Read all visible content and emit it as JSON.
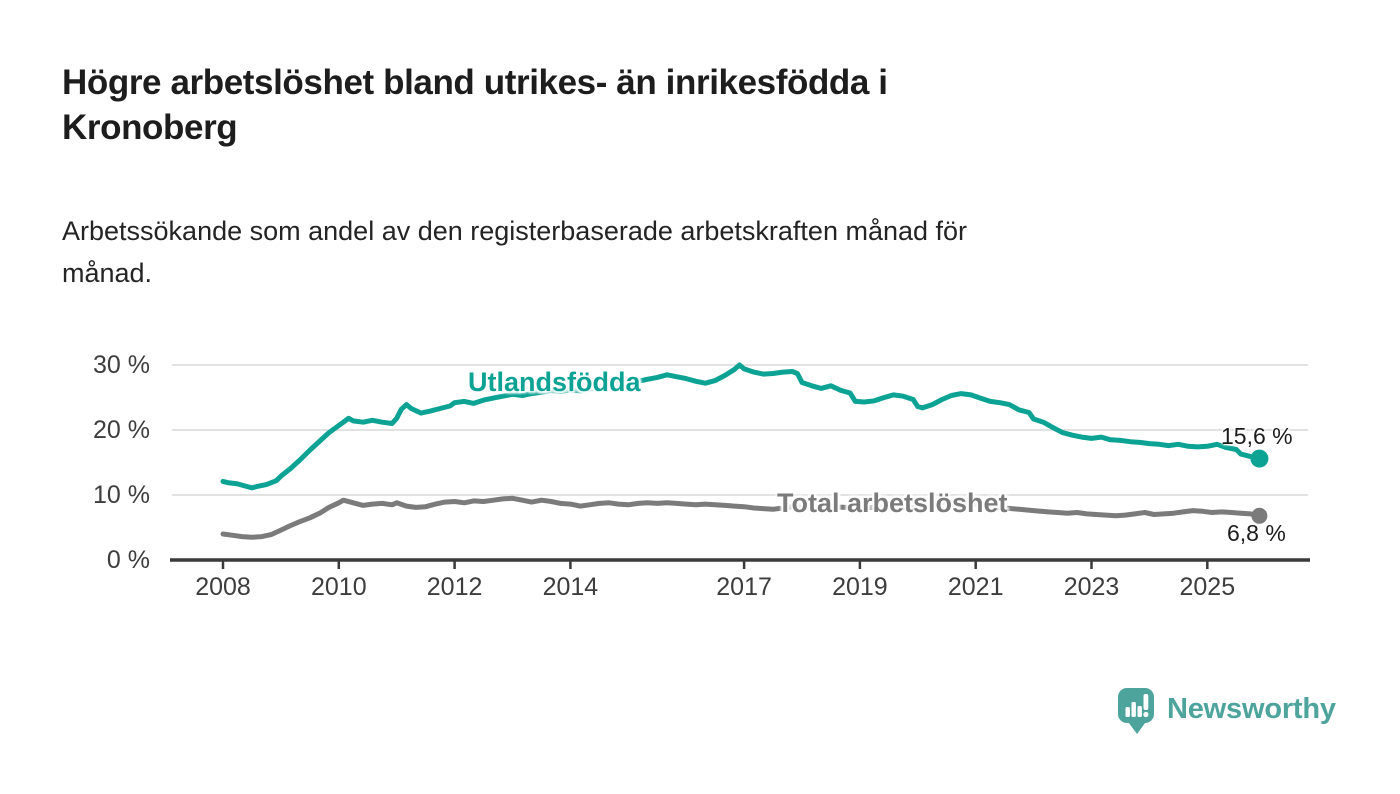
{
  "title": {
    "line1": "Högre arbetslöshet bland utrikes- än inrikesfödda i",
    "line2": "Kronoberg"
  },
  "subtitle": {
    "line1": "Arbetssökande som andel av den registerbaserade arbetskraften månad för",
    "line2": "månad."
  },
  "branding": {
    "name": "Newsworthy",
    "icon": "newsworthy-speech-bubble-bar-chart-icon",
    "color": "#4da49c"
  },
  "colors": {
    "series_foreign_born": "#0ca394",
    "series_total": "#7b7b7b",
    "gridline": "#d9d9d9",
    "axis": "#3a3a3a",
    "text": "#1d1d1d"
  },
  "chart_data": {
    "type": "line",
    "title": "Högre arbetslöshet bland utrikes- än inrikesfödda i Kronoberg",
    "subtitle": "Arbetssökande som andel av den registerbaserade arbetskraften månad för månad.",
    "xlabel": "",
    "ylabel": "",
    "legend_position": "inline-labels",
    "grid": true,
    "x_axis": {
      "ticks": [
        2008,
        2010,
        2012,
        2014,
        2017,
        2019,
        2021,
        2023,
        2025
      ],
      "labels": [
        "2008",
        "2010",
        "2012",
        "2014",
        "2017",
        "2019",
        "2021",
        "2023",
        "2025"
      ],
      "range": [
        2007.1,
        2026.8
      ]
    },
    "y_axis": {
      "ticks": [
        0,
        10,
        20,
        30
      ],
      "labels": [
        "0 %",
        "10 %",
        "20 %",
        "30 %"
      ],
      "range": [
        0,
        33
      ]
    },
    "series": [
      {
        "name": "Utlandsfödda",
        "color": "#0ca394",
        "end_value": 15.6,
        "end_label": "15,6 %",
        "points": [
          [
            2008.0,
            12.1
          ],
          [
            2008.08,
            11.9
          ],
          [
            2008.25,
            11.7
          ],
          [
            2008.42,
            11.3
          ],
          [
            2008.5,
            11.1
          ],
          [
            2008.58,
            11.3
          ],
          [
            2008.75,
            11.6
          ],
          [
            2008.92,
            12.2
          ],
          [
            2009.0,
            12.9
          ],
          [
            2009.17,
            14.1
          ],
          [
            2009.33,
            15.4
          ],
          [
            2009.5,
            16.9
          ],
          [
            2009.67,
            18.3
          ],
          [
            2009.83,
            19.6
          ],
          [
            2010.0,
            20.7
          ],
          [
            2010.08,
            21.2
          ],
          [
            2010.17,
            21.8
          ],
          [
            2010.25,
            21.4
          ],
          [
            2010.42,
            21.2
          ],
          [
            2010.58,
            21.5
          ],
          [
            2010.75,
            21.2
          ],
          [
            2010.92,
            21.0
          ],
          [
            2011.0,
            21.8
          ],
          [
            2011.08,
            23.2
          ],
          [
            2011.17,
            23.9
          ],
          [
            2011.25,
            23.3
          ],
          [
            2011.42,
            22.6
          ],
          [
            2011.58,
            22.9
          ],
          [
            2011.75,
            23.3
          ],
          [
            2011.92,
            23.7
          ],
          [
            2012.0,
            24.2
          ],
          [
            2012.17,
            24.4
          ],
          [
            2012.33,
            24.1
          ],
          [
            2012.5,
            24.6
          ],
          [
            2012.67,
            24.9
          ],
          [
            2012.83,
            25.2
          ],
          [
            2013.0,
            25.5
          ],
          [
            2013.17,
            25.3
          ],
          [
            2013.33,
            25.6
          ],
          [
            2013.5,
            25.8
          ],
          [
            2013.67,
            26.1
          ],
          [
            2013.83,
            25.9
          ],
          [
            2014.0,
            26.2
          ],
          [
            2014.17,
            26.0
          ],
          [
            2014.33,
            26.3
          ],
          [
            2014.5,
            26.6
          ],
          [
            2014.67,
            26.9
          ],
          [
            2014.83,
            27.1
          ],
          [
            2015.0,
            27.3
          ],
          [
            2015.17,
            27.5
          ],
          [
            2015.33,
            27.8
          ],
          [
            2015.5,
            28.1
          ],
          [
            2015.67,
            28.5
          ],
          [
            2015.83,
            28.2
          ],
          [
            2016.0,
            27.9
          ],
          [
            2016.17,
            27.5
          ],
          [
            2016.33,
            27.2
          ],
          [
            2016.5,
            27.6
          ],
          [
            2016.67,
            28.4
          ],
          [
            2016.83,
            29.3
          ],
          [
            2016.92,
            30.0
          ],
          [
            2017.0,
            29.4
          ],
          [
            2017.17,
            28.9
          ],
          [
            2017.33,
            28.6
          ],
          [
            2017.5,
            28.7
          ],
          [
            2017.67,
            28.9
          ],
          [
            2017.83,
            29.0
          ],
          [
            2017.92,
            28.7
          ],
          [
            2018.0,
            27.3
          ],
          [
            2018.17,
            26.8
          ],
          [
            2018.33,
            26.4
          ],
          [
            2018.5,
            26.8
          ],
          [
            2018.67,
            26.1
          ],
          [
            2018.83,
            25.7
          ],
          [
            2018.92,
            24.4
          ],
          [
            2019.08,
            24.3
          ],
          [
            2019.25,
            24.5
          ],
          [
            2019.42,
            25.0
          ],
          [
            2019.58,
            25.4
          ],
          [
            2019.75,
            25.2
          ],
          [
            2019.92,
            24.7
          ],
          [
            2020.0,
            23.6
          ],
          [
            2020.08,
            23.4
          ],
          [
            2020.25,
            23.9
          ],
          [
            2020.42,
            24.7
          ],
          [
            2020.58,
            25.3
          ],
          [
            2020.75,
            25.6
          ],
          [
            2020.92,
            25.4
          ],
          [
            2021.08,
            24.9
          ],
          [
            2021.25,
            24.4
          ],
          [
            2021.42,
            24.2
          ],
          [
            2021.58,
            23.9
          ],
          [
            2021.75,
            23.1
          ],
          [
            2021.92,
            22.7
          ],
          [
            2022.0,
            21.7
          ],
          [
            2022.17,
            21.2
          ],
          [
            2022.33,
            20.4
          ],
          [
            2022.5,
            19.6
          ],
          [
            2022.67,
            19.2
          ],
          [
            2022.83,
            18.9
          ],
          [
            2023.0,
            18.7
          ],
          [
            2023.17,
            18.9
          ],
          [
            2023.33,
            18.5
          ],
          [
            2023.5,
            18.4
          ],
          [
            2023.67,
            18.2
          ],
          [
            2023.83,
            18.1
          ],
          [
            2024.0,
            17.9
          ],
          [
            2024.17,
            17.8
          ],
          [
            2024.33,
            17.6
          ],
          [
            2024.5,
            17.8
          ],
          [
            2024.67,
            17.5
          ],
          [
            2024.83,
            17.4
          ],
          [
            2025.0,
            17.5
          ],
          [
            2025.17,
            17.8
          ],
          [
            2025.33,
            17.3
          ],
          [
            2025.5,
            17.0
          ],
          [
            2025.58,
            16.3
          ],
          [
            2025.75,
            15.9
          ],
          [
            2025.9,
            15.6
          ]
        ]
      },
      {
        "name": "Total arbetslöshet",
        "color": "#7b7b7b",
        "end_value": 6.8,
        "end_label": "6,8 %",
        "points": [
          [
            2008.0,
            4.0
          ],
          [
            2008.17,
            3.8
          ],
          [
            2008.33,
            3.6
          ],
          [
            2008.5,
            3.5
          ],
          [
            2008.67,
            3.6
          ],
          [
            2008.83,
            3.9
          ],
          [
            2009.0,
            4.6
          ],
          [
            2009.17,
            5.3
          ],
          [
            2009.33,
            5.9
          ],
          [
            2009.5,
            6.5
          ],
          [
            2009.67,
            7.2
          ],
          [
            2009.83,
            8.1
          ],
          [
            2010.0,
            8.8
          ],
          [
            2010.08,
            9.2
          ],
          [
            2010.25,
            8.8
          ],
          [
            2010.42,
            8.4
          ],
          [
            2010.58,
            8.6
          ],
          [
            2010.75,
            8.7
          ],
          [
            2010.92,
            8.5
          ],
          [
            2011.0,
            8.8
          ],
          [
            2011.17,
            8.3
          ],
          [
            2011.33,
            8.1
          ],
          [
            2011.5,
            8.2
          ],
          [
            2011.67,
            8.6
          ],
          [
            2011.83,
            8.9
          ],
          [
            2012.0,
            9.0
          ],
          [
            2012.17,
            8.8
          ],
          [
            2012.33,
            9.1
          ],
          [
            2012.5,
            9.0
          ],
          [
            2012.67,
            9.2
          ],
          [
            2012.83,
            9.4
          ],
          [
            2013.0,
            9.5
          ],
          [
            2013.17,
            9.2
          ],
          [
            2013.33,
            8.9
          ],
          [
            2013.5,
            9.2
          ],
          [
            2013.67,
            9.0
          ],
          [
            2013.83,
            8.7
          ],
          [
            2014.0,
            8.6
          ],
          [
            2014.17,
            8.3
          ],
          [
            2014.33,
            8.5
          ],
          [
            2014.5,
            8.7
          ],
          [
            2014.67,
            8.8
          ],
          [
            2014.83,
            8.6
          ],
          [
            2015.0,
            8.5
          ],
          [
            2015.17,
            8.7
          ],
          [
            2015.33,
            8.8
          ],
          [
            2015.5,
            8.7
          ],
          [
            2015.67,
            8.8
          ],
          [
            2015.83,
            8.7
          ],
          [
            2016.0,
            8.6
          ],
          [
            2016.17,
            8.5
          ],
          [
            2016.33,
            8.6
          ],
          [
            2016.5,
            8.5
          ],
          [
            2016.67,
            8.4
          ],
          [
            2016.83,
            8.3
          ],
          [
            2017.0,
            8.2
          ],
          [
            2017.17,
            8.0
          ],
          [
            2017.33,
            7.9
          ],
          [
            2017.5,
            7.8
          ],
          [
            2017.67,
            8.0
          ],
          [
            2017.83,
            8.2
          ],
          [
            2018.0,
            8.1
          ],
          [
            2018.25,
            8.0
          ],
          [
            2018.5,
            8.2
          ],
          [
            2018.75,
            8.1
          ],
          [
            2019.0,
            8.0
          ],
          [
            2019.25,
            8.1
          ],
          [
            2019.5,
            8.2
          ],
          [
            2019.75,
            8.1
          ],
          [
            2020.0,
            8.0
          ],
          [
            2020.25,
            8.6
          ],
          [
            2020.5,
            9.0
          ],
          [
            2020.75,
            8.8
          ],
          [
            2021.0,
            8.6
          ],
          [
            2021.25,
            8.3
          ],
          [
            2021.5,
            8.0
          ],
          [
            2021.75,
            7.8
          ],
          [
            2022.0,
            7.6
          ],
          [
            2022.25,
            7.4
          ],
          [
            2022.42,
            7.3
          ],
          [
            2022.58,
            7.2
          ],
          [
            2022.75,
            7.3
          ],
          [
            2022.92,
            7.1
          ],
          [
            2023.08,
            7.0
          ],
          [
            2023.25,
            6.9
          ],
          [
            2023.42,
            6.8
          ],
          [
            2023.58,
            6.9
          ],
          [
            2023.75,
            7.1
          ],
          [
            2023.92,
            7.3
          ],
          [
            2024.08,
            7.0
          ],
          [
            2024.25,
            7.1
          ],
          [
            2024.42,
            7.2
          ],
          [
            2024.58,
            7.4
          ],
          [
            2024.75,
            7.6
          ],
          [
            2024.92,
            7.5
          ],
          [
            2025.08,
            7.3
          ],
          [
            2025.25,
            7.4
          ],
          [
            2025.42,
            7.3
          ],
          [
            2025.58,
            7.2
          ],
          [
            2025.75,
            7.1
          ],
          [
            2025.9,
            6.8
          ]
        ]
      }
    ]
  }
}
